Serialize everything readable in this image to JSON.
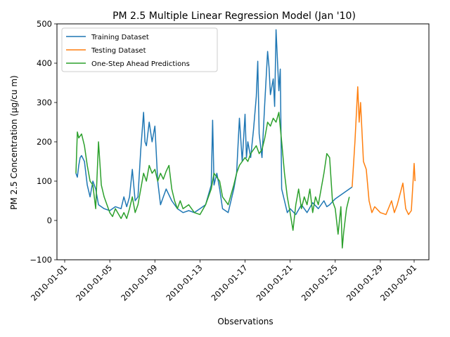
{
  "chart_data": {
    "type": "line",
    "title": "PM 2.5 Multiple Linear Regression Model (Jan '10)",
    "xlabel": "Observations",
    "ylabel": "PM 2.5 Concentration (µg/cu m)",
    "xlim": [
      "2010-01-01",
      "2010-02-01"
    ],
    "ylim": [
      -100,
      500
    ],
    "x_ticks": [
      "2010-01-01",
      "2010-01-05",
      "2010-01-09",
      "2010-01-13",
      "2010-01-17",
      "2010-01-21",
      "2010-01-25",
      "2010-01-29",
      "2010-02-01"
    ],
    "y_ticks": [
      -100,
      0,
      100,
      200,
      300,
      400,
      500
    ],
    "grid": false,
    "legend_position": "top-left",
    "series": [
      {
        "name": "Training Dataset",
        "color": "#1f77b4",
        "points": [
          [
            "2010-01-02T00:00",
            120
          ],
          [
            "2010-01-02T03:00",
            110
          ],
          [
            "2010-01-02T06:00",
            140
          ],
          [
            "2010-01-02T09:00",
            160
          ],
          [
            "2010-01-02T12:00",
            165
          ],
          [
            "2010-01-02T18:00",
            150
          ],
          [
            "2010-01-03T00:00",
            90
          ],
          [
            "2010-01-03T06:00",
            60
          ],
          [
            "2010-01-03T12:00",
            100
          ],
          [
            "2010-01-03T18:00",
            80
          ],
          [
            "2010-01-04T00:00",
            40
          ],
          [
            "2010-01-04T12:00",
            30
          ],
          [
            "2010-01-05T00:00",
            25
          ],
          [
            "2010-01-05T12:00",
            35
          ],
          [
            "2010-01-06T00:00",
            30
          ],
          [
            "2010-01-06T06:00",
            60
          ],
          [
            "2010-01-06T12:00",
            35
          ],
          [
            "2010-01-06T18:00",
            60
          ],
          [
            "2010-01-07T00:00",
            130
          ],
          [
            "2010-01-07T06:00",
            50
          ],
          [
            "2010-01-07T12:00",
            60
          ],
          [
            "2010-01-07T18:00",
            180
          ],
          [
            "2010-01-08T00:00",
            275
          ],
          [
            "2010-01-08T03:00",
            200
          ],
          [
            "2010-01-08T06:00",
            190
          ],
          [
            "2010-01-08T12:00",
            250
          ],
          [
            "2010-01-08T18:00",
            200
          ],
          [
            "2010-01-09T00:00",
            240
          ],
          [
            "2010-01-09T06:00",
            100
          ],
          [
            "2010-01-09T12:00",
            40
          ],
          [
            "2010-01-09T18:00",
            60
          ],
          [
            "2010-01-10T00:00",
            80
          ],
          [
            "2010-01-10T12:00",
            50
          ],
          [
            "2010-01-11T00:00",
            30
          ],
          [
            "2010-01-11T12:00",
            20
          ],
          [
            "2010-01-12T00:00",
            25
          ],
          [
            "2010-01-12T12:00",
            20
          ],
          [
            "2010-01-13T00:00",
            30
          ],
          [
            "2010-01-13T12:00",
            40
          ],
          [
            "2010-01-14T00:00",
            90
          ],
          [
            "2010-01-14T03:00",
            255
          ],
          [
            "2010-01-14T06:00",
            90
          ],
          [
            "2010-01-14T12:00",
            120
          ],
          [
            "2010-01-14T18:00",
            80
          ],
          [
            "2010-01-15T00:00",
            30
          ],
          [
            "2010-01-15T12:00",
            20
          ],
          [
            "2010-01-16T00:00",
            80
          ],
          [
            "2010-01-16T06:00",
            120
          ],
          [
            "2010-01-16T12:00",
            260
          ],
          [
            "2010-01-16T18:00",
            150
          ],
          [
            "2010-01-17T00:00",
            270
          ],
          [
            "2010-01-17T03:00",
            160
          ],
          [
            "2010-01-17T06:00",
            200
          ],
          [
            "2010-01-17T12:00",
            160
          ],
          [
            "2010-01-17T18:00",
            230
          ],
          [
            "2010-01-18T00:00",
            315
          ],
          [
            "2010-01-18T03:00",
            405
          ],
          [
            "2010-01-18T06:00",
            220
          ],
          [
            "2010-01-18T12:00",
            160
          ],
          [
            "2010-01-18T18:00",
            300
          ],
          [
            "2010-01-19T00:00",
            430
          ],
          [
            "2010-01-19T03:00",
            390
          ],
          [
            "2010-01-19T06:00",
            320
          ],
          [
            "2010-01-19T12:00",
            360
          ],
          [
            "2010-01-19T15:00",
            290
          ],
          [
            "2010-01-19T18:00",
            485
          ],
          [
            "2010-01-20T00:00",
            330
          ],
          [
            "2010-01-20T03:00",
            385
          ],
          [
            "2010-01-20T06:00",
            80
          ],
          [
            "2010-01-20T12:00",
            50
          ],
          [
            "2010-01-20T18:00",
            20
          ],
          [
            "2010-01-21T00:00",
            30
          ],
          [
            "2010-01-21T12:00",
            15
          ],
          [
            "2010-01-22T00:00",
            40
          ],
          [
            "2010-01-22T12:00",
            20
          ],
          [
            "2010-01-23T00:00",
            45
          ],
          [
            "2010-01-23T12:00",
            30
          ],
          [
            "2010-01-24T00:00",
            50
          ],
          [
            "2010-01-24T06:00",
            35
          ],
          [
            "2010-01-24T12:00",
            40
          ],
          [
            "2010-01-25T00:00",
            55
          ],
          [
            "2010-01-25T12:00",
            65
          ],
          [
            "2010-01-26T00:00",
            75
          ],
          [
            "2010-01-26T12:00",
            85
          ]
        ]
      },
      {
        "name": "Testing Dataset",
        "color": "#ff7f0e",
        "points": [
          [
            "2010-01-26T12:00",
            85
          ],
          [
            "2010-01-26T18:00",
            200
          ],
          [
            "2010-01-27T00:00",
            340
          ],
          [
            "2010-01-27T03:00",
            250
          ],
          [
            "2010-01-27T06:00",
            300
          ],
          [
            "2010-01-27T12:00",
            150
          ],
          [
            "2010-01-27T18:00",
            130
          ],
          [
            "2010-01-28T00:00",
            50
          ],
          [
            "2010-01-28T06:00",
            20
          ],
          [
            "2010-01-28T12:00",
            35
          ],
          [
            "2010-01-29T00:00",
            20
          ],
          [
            "2010-01-29T12:00",
            15
          ],
          [
            "2010-01-30T00:00",
            50
          ],
          [
            "2010-01-30T06:00",
            20
          ],
          [
            "2010-01-30T12:00",
            40
          ],
          [
            "2010-01-31T00:00",
            95
          ],
          [
            "2010-01-31T06:00",
            30
          ],
          [
            "2010-01-31T12:00",
            15
          ],
          [
            "2010-01-31T18:00",
            25
          ],
          [
            "2010-02-01T00:00",
            145
          ],
          [
            "2010-02-01T02:00",
            100
          ]
        ]
      },
      {
        "name": "One-Step Ahead Predictions",
        "color": "#2ca02c",
        "points": [
          [
            "2010-01-02T00:00",
            120
          ],
          [
            "2010-01-02T03:00",
            225
          ],
          [
            "2010-01-02T06:00",
            210
          ],
          [
            "2010-01-02T12:00",
            220
          ],
          [
            "2010-01-02T18:00",
            190
          ],
          [
            "2010-01-03T00:00",
            140
          ],
          [
            "2010-01-03T06:00",
            100
          ],
          [
            "2010-01-03T12:00",
            90
          ],
          [
            "2010-01-03T18:00",
            30
          ],
          [
            "2010-01-04T00:00",
            200
          ],
          [
            "2010-01-04T06:00",
            90
          ],
          [
            "2010-01-04T12:00",
            60
          ],
          [
            "2010-01-05T00:00",
            20
          ],
          [
            "2010-01-05T06:00",
            10
          ],
          [
            "2010-01-05T12:00",
            30
          ],
          [
            "2010-01-06T00:00",
            5
          ],
          [
            "2010-01-06T06:00",
            20
          ],
          [
            "2010-01-06T12:00",
            5
          ],
          [
            "2010-01-06T18:00",
            30
          ],
          [
            "2010-01-07T00:00",
            60
          ],
          [
            "2010-01-07T06:00",
            20
          ],
          [
            "2010-01-07T12:00",
            40
          ],
          [
            "2010-01-07T18:00",
            80
          ],
          [
            "2010-01-08T00:00",
            120
          ],
          [
            "2010-01-08T06:00",
            100
          ],
          [
            "2010-01-08T12:00",
            140
          ],
          [
            "2010-01-08T18:00",
            120
          ],
          [
            "2010-01-09T00:00",
            130
          ],
          [
            "2010-01-09T06:00",
            100
          ],
          [
            "2010-01-09T12:00",
            120
          ],
          [
            "2010-01-09T18:00",
            105
          ],
          [
            "2010-01-10T00:00",
            125
          ],
          [
            "2010-01-10T06:00",
            140
          ],
          [
            "2010-01-10T12:00",
            80
          ],
          [
            "2010-01-10T18:00",
            50
          ],
          [
            "2010-01-11T00:00",
            30
          ],
          [
            "2010-01-11T06:00",
            50
          ],
          [
            "2010-01-11T12:00",
            30
          ],
          [
            "2010-01-12T00:00",
            40
          ],
          [
            "2010-01-12T12:00",
            20
          ],
          [
            "2010-01-13T00:00",
            15
          ],
          [
            "2010-01-13T12:00",
            40
          ],
          [
            "2010-01-14T00:00",
            80
          ],
          [
            "2010-01-14T06:00",
            120
          ],
          [
            "2010-01-14T12:00",
            110
          ],
          [
            "2010-01-14T18:00",
            100
          ],
          [
            "2010-01-15T00:00",
            60
          ],
          [
            "2010-01-15T12:00",
            40
          ],
          [
            "2010-01-16T00:00",
            90
          ],
          [
            "2010-01-16T06:00",
            120
          ],
          [
            "2010-01-16T12:00",
            140
          ],
          [
            "2010-01-16T18:00",
            150
          ],
          [
            "2010-01-17T00:00",
            160
          ],
          [
            "2010-01-17T06:00",
            150
          ],
          [
            "2010-01-17T12:00",
            170
          ],
          [
            "2010-01-17T18:00",
            180
          ],
          [
            "2010-01-18T00:00",
            190
          ],
          [
            "2010-01-18T06:00",
            170
          ],
          [
            "2010-01-18T12:00",
            180
          ],
          [
            "2010-01-18T18:00",
            210
          ],
          [
            "2010-01-19T00:00",
            250
          ],
          [
            "2010-01-19T06:00",
            240
          ],
          [
            "2010-01-19T12:00",
            260
          ],
          [
            "2010-01-19T18:00",
            250
          ],
          [
            "2010-01-20T00:00",
            275
          ],
          [
            "2010-01-20T06:00",
            200
          ],
          [
            "2010-01-20T12:00",
            120
          ],
          [
            "2010-01-20T18:00",
            60
          ],
          [
            "2010-01-21T00:00",
            20
          ],
          [
            "2010-01-21T06:00",
            -25
          ],
          [
            "2010-01-21T12:00",
            40
          ],
          [
            "2010-01-21T18:00",
            80
          ],
          [
            "2010-01-22T00:00",
            30
          ],
          [
            "2010-01-22T06:00",
            60
          ],
          [
            "2010-01-22T12:00",
            40
          ],
          [
            "2010-01-22T18:00",
            80
          ],
          [
            "2010-01-23T00:00",
            20
          ],
          [
            "2010-01-23T06:00",
            60
          ],
          [
            "2010-01-23T12:00",
            40
          ],
          [
            "2010-01-24T00:00",
            120
          ],
          [
            "2010-01-24T06:00",
            170
          ],
          [
            "2010-01-24T12:00",
            160
          ],
          [
            "2010-01-24T18:00",
            50
          ],
          [
            "2010-01-25T00:00",
            30
          ],
          [
            "2010-01-25T06:00",
            -35
          ],
          [
            "2010-01-25T12:00",
            35
          ],
          [
            "2010-01-25T15:00",
            -70
          ],
          [
            "2010-01-25T18:00",
            -30
          ],
          [
            "2010-01-26T00:00",
            30
          ],
          [
            "2010-01-26T06:00",
            60
          ]
        ]
      }
    ]
  }
}
